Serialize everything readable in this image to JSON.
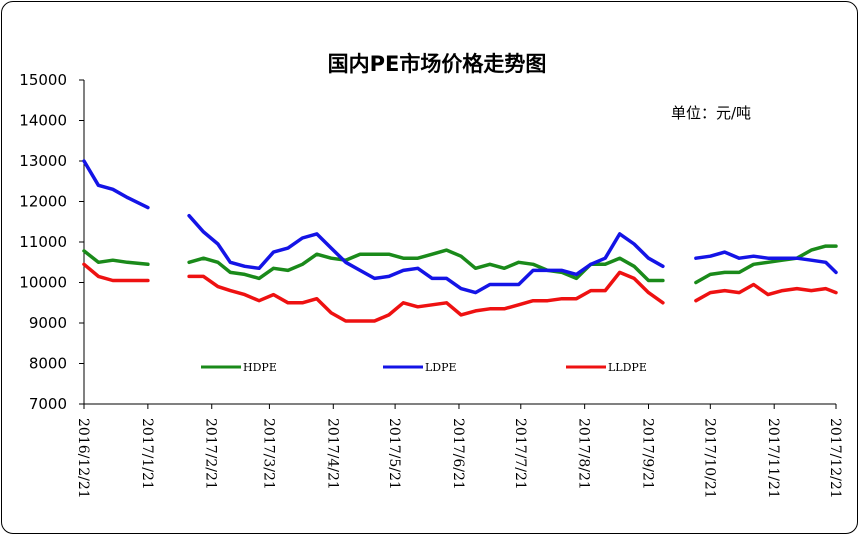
{
  "chart_data": {
    "type": "line",
    "title": "国内PE市场价格走势图",
    "unit_label": "单位：元/吨",
    "ylim": [
      7000,
      15000
    ],
    "y_ticks": [
      7000,
      8000,
      9000,
      10000,
      11000,
      12000,
      13000,
      14000,
      15000
    ],
    "x_ticks": [
      "2016/12/21",
      "2017/1/21",
      "2017/2/21",
      "2017/3/21",
      "2017/4/21",
      "2017/5/21",
      "2017/6/21",
      "2017/7/21",
      "2017/8/21",
      "2017/9/21",
      "2017/10/21",
      "2017/11/21",
      "2017/12/21"
    ],
    "grid": false,
    "legend_position": "inside-bottom",
    "series": [
      {
        "name": "HDPE",
        "color": "#1a8a1a",
        "segments": [
          [
            [
              "2016-12-21",
              10780
            ],
            [
              "2016-12-28",
              10500
            ],
            [
              "2017-01-04",
              10550
            ],
            [
              "2017-01-11",
              10500
            ],
            [
              "2017-01-21",
              10450
            ]
          ],
          [
            [
              "2017-02-10",
              10500
            ],
            [
              "2017-02-17",
              10600
            ],
            [
              "2017-02-24",
              10500
            ],
            [
              "2017-03-02",
              10250
            ],
            [
              "2017-03-09",
              10200
            ],
            [
              "2017-03-16",
              10100
            ],
            [
              "2017-03-23",
              10350
            ],
            [
              "2017-03-30",
              10300
            ],
            [
              "2017-04-06",
              10450
            ],
            [
              "2017-04-13",
              10700
            ],
            [
              "2017-04-20",
              10600
            ],
            [
              "2017-04-27",
              10550
            ],
            [
              "2017-05-04",
              10700
            ],
            [
              "2017-05-11",
              10700
            ],
            [
              "2017-05-18",
              10700
            ],
            [
              "2017-05-25",
              10600
            ],
            [
              "2017-06-01",
              10600
            ],
            [
              "2017-06-08",
              10700
            ],
            [
              "2017-06-15",
              10800
            ],
            [
              "2017-06-22",
              10650
            ],
            [
              "2017-06-29",
              10350
            ],
            [
              "2017-07-06",
              10450
            ],
            [
              "2017-07-13",
              10350
            ],
            [
              "2017-07-20",
              10500
            ],
            [
              "2017-07-27",
              10450
            ],
            [
              "2017-08-03",
              10300
            ],
            [
              "2017-08-10",
              10250
            ],
            [
              "2017-08-17",
              10100
            ],
            [
              "2017-08-24",
              10450
            ],
            [
              "2017-08-31",
              10450
            ],
            [
              "2017-09-07",
              10600
            ],
            [
              "2017-09-14",
              10400
            ],
            [
              "2017-09-21",
              10050
            ],
            [
              "2017-09-28",
              10050
            ]
          ],
          [
            [
              "2017-10-14",
              10000
            ],
            [
              "2017-10-21",
              10200
            ],
            [
              "2017-10-28",
              10250
            ],
            [
              "2017-11-04",
              10250
            ],
            [
              "2017-11-11",
              10450
            ],
            [
              "2017-11-18",
              10500
            ],
            [
              "2017-11-25",
              10550
            ],
            [
              "2017-12-02",
              10600
            ],
            [
              "2017-12-09",
              10800
            ],
            [
              "2017-12-16",
              10900
            ],
            [
              "2017-12-21",
              10900
            ]
          ]
        ]
      },
      {
        "name": "LDPE",
        "color": "#1414e6",
        "segments": [
          [
            [
              "2016-12-21",
              13000
            ],
            [
              "2016-12-28",
              12400
            ],
            [
              "2017-01-04",
              12300
            ],
            [
              "2017-01-11",
              12100
            ],
            [
              "2017-01-21",
              11850
            ]
          ],
          [
            [
              "2017-02-10",
              11650
            ],
            [
              "2017-02-17",
              11250
            ],
            [
              "2017-02-24",
              10950
            ],
            [
              "2017-03-02",
              10500
            ],
            [
              "2017-03-09",
              10400
            ],
            [
              "2017-03-16",
              10350
            ],
            [
              "2017-03-23",
              10750
            ],
            [
              "2017-03-30",
              10850
            ],
            [
              "2017-04-06",
              11100
            ],
            [
              "2017-04-13",
              11200
            ],
            [
              "2017-04-20",
              10850
            ],
            [
              "2017-04-27",
              10500
            ],
            [
              "2017-05-04",
              10300
            ],
            [
              "2017-05-11",
              10100
            ],
            [
              "2017-05-18",
              10150
            ],
            [
              "2017-05-25",
              10300
            ],
            [
              "2017-06-01",
              10350
            ],
            [
              "2017-06-08",
              10100
            ],
            [
              "2017-06-15",
              10100
            ],
            [
              "2017-06-22",
              9850
            ],
            [
              "2017-06-29",
              9750
            ],
            [
              "2017-07-06",
              9950
            ],
            [
              "2017-07-13",
              9950
            ],
            [
              "2017-07-20",
              9950
            ],
            [
              "2017-07-27",
              10300
            ],
            [
              "2017-08-03",
              10300
            ],
            [
              "2017-08-10",
              10300
            ],
            [
              "2017-08-17",
              10200
            ],
            [
              "2017-08-24",
              10450
            ],
            [
              "2017-08-31",
              10600
            ],
            [
              "2017-09-07",
              11200
            ],
            [
              "2017-09-14",
              10950
            ],
            [
              "2017-09-21",
              10600
            ],
            [
              "2017-09-28",
              10400
            ]
          ],
          [
            [
              "2017-10-14",
              10600
            ],
            [
              "2017-10-21",
              10650
            ],
            [
              "2017-10-28",
              10750
            ],
            [
              "2017-11-04",
              10600
            ],
            [
              "2017-11-11",
              10650
            ],
            [
              "2017-11-18",
              10600
            ],
            [
              "2017-11-25",
              10600
            ],
            [
              "2017-12-02",
              10600
            ],
            [
              "2017-12-09",
              10550
            ],
            [
              "2017-12-16",
              10500
            ],
            [
              "2017-12-21",
              10250
            ]
          ]
        ]
      },
      {
        "name": "LLDPE",
        "color": "#ee1111",
        "segments": [
          [
            [
              "2016-12-21",
              10450
            ],
            [
              "2016-12-28",
              10150
            ],
            [
              "2017-01-04",
              10050
            ],
            [
              "2017-01-11",
              10050
            ],
            [
              "2017-01-21",
              10050
            ]
          ],
          [
            [
              "2017-02-10",
              10150
            ],
            [
              "2017-02-17",
              10150
            ],
            [
              "2017-02-24",
              9900
            ],
            [
              "2017-03-02",
              9800
            ],
            [
              "2017-03-09",
              9700
            ],
            [
              "2017-03-16",
              9550
            ],
            [
              "2017-03-23",
              9700
            ],
            [
              "2017-03-30",
              9500
            ],
            [
              "2017-04-06",
              9500
            ],
            [
              "2017-04-13",
              9600
            ],
            [
              "2017-04-20",
              9250
            ],
            [
              "2017-04-27",
              9050
            ],
            [
              "2017-05-04",
              9050
            ],
            [
              "2017-05-11",
              9050
            ],
            [
              "2017-05-18",
              9200
            ],
            [
              "2017-05-25",
              9500
            ],
            [
              "2017-06-01",
              9400
            ],
            [
              "2017-06-08",
              9450
            ],
            [
              "2017-06-15",
              9500
            ],
            [
              "2017-06-22",
              9200
            ],
            [
              "2017-06-29",
              9300
            ],
            [
              "2017-07-06",
              9350
            ],
            [
              "2017-07-13",
              9350
            ],
            [
              "2017-07-20",
              9450
            ],
            [
              "2017-07-27",
              9550
            ],
            [
              "2017-08-03",
              9550
            ],
            [
              "2017-08-10",
              9600
            ],
            [
              "2017-08-17",
              9600
            ],
            [
              "2017-08-24",
              9800
            ],
            [
              "2017-08-31",
              9800
            ],
            [
              "2017-09-07",
              10250
            ],
            [
              "2017-09-14",
              10100
            ],
            [
              "2017-09-21",
              9750
            ],
            [
              "2017-09-28",
              9500
            ]
          ],
          [
            [
              "2017-10-14",
              9550
            ],
            [
              "2017-10-21",
              9750
            ],
            [
              "2017-10-28",
              9800
            ],
            [
              "2017-11-04",
              9750
            ],
            [
              "2017-11-11",
              9950
            ],
            [
              "2017-11-18",
              9700
            ],
            [
              "2017-11-25",
              9800
            ],
            [
              "2017-12-02",
              9850
            ],
            [
              "2017-12-09",
              9800
            ],
            [
              "2017-12-16",
              9850
            ],
            [
              "2017-12-21",
              9750
            ]
          ]
        ]
      }
    ]
  }
}
